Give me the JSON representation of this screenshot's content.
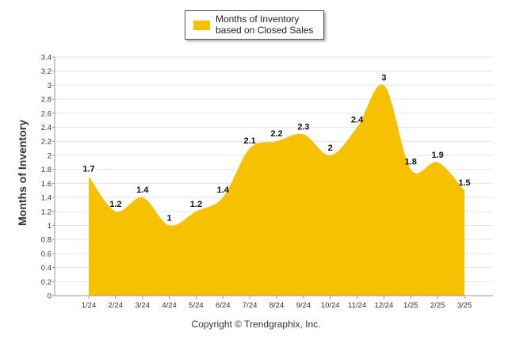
{
  "chart_data": {
    "type": "area",
    "categories": [
      "1/24",
      "2/24",
      "3/24",
      "4/24",
      "5/24",
      "6/24",
      "7/24",
      "8/24",
      "9/24",
      "10/24",
      "11/24",
      "12/24",
      "1/25",
      "2/25",
      "3/25"
    ],
    "series": [
      {
        "name": "Months of Inventory based on Closed Sales",
        "values": [
          1.7,
          1.2,
          1.4,
          1,
          1.2,
          1.4,
          2.1,
          2.2,
          2.3,
          2,
          2.4,
          3,
          1.8,
          1.9,
          1.5
        ],
        "labels": [
          "1.7",
          "1.2",
          "1.4",
          "1",
          "1.2",
          "1.4",
          "2.1",
          "2.2",
          "2.3",
          "2",
          "2.4",
          "3",
          "1.8",
          "1.9",
          "1.5"
        ]
      }
    ],
    "ylabel": "Months of Inventory",
    "xlabel": "",
    "ylim": [
      0,
      3.4
    ],
    "yticks": [
      "0",
      "0.2",
      "0.4",
      "0.6",
      "0.8",
      "1",
      "1.2",
      "1.4",
      "1.6",
      "1.8",
      "2",
      "2.2",
      "2.4",
      "2.6",
      "2.8",
      "3",
      "3.2",
      "3.4"
    ],
    "grid": true,
    "legend_position": "top-center",
    "colors": {
      "fill": "#F6C100",
      "grid": "#e6e6e6",
      "axis": "#999999"
    }
  },
  "legend": {
    "label": "Months of Inventory based on Closed Sales"
  },
  "footer": {
    "copyright": "Copyright © Trendgraphix, Inc."
  }
}
